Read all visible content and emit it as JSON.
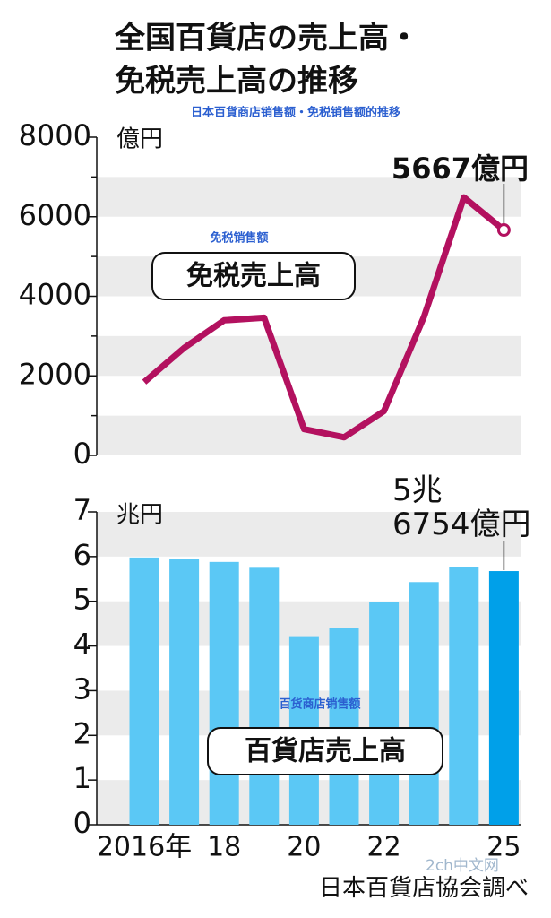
{
  "header": {
    "title": [
      "全国百貨店の売上高・",
      "免税売上高の推移"
    ],
    "subtitle": "日本百貨商店销售额・免税销售额的推移"
  },
  "chart_data": [
    {
      "type": "line",
      "y_unit": "億円",
      "label_cn": "免税销售额",
      "label": "免税売上高",
      "values": [
        1843,
        2704,
        3396,
        3461,
        660,
        456,
        1115,
        3484,
        6487,
        5667
      ],
      "value_labels": [
        null,
        null,
        null,
        null,
        null,
        null,
        null,
        null,
        null,
        "5667億円"
      ],
      "color": "#b3115f",
      "ylim": [
        0,
        8000
      ],
      "yticks": [
        0,
        2000,
        4000,
        6000,
        8000
      ],
      "minor_yticks": [
        1000,
        3000,
        5000,
        7000
      ],
      "grid": "bands"
    },
    {
      "type": "bar",
      "y_unit": "兆円",
      "label_cn": "百货商店销售额",
      "label": "百貨店売上高",
      "categories": [
        "2016年",
        null,
        "18",
        null,
        "20",
        null,
        "22",
        null,
        null,
        "25"
      ],
      "values": [
        5.98,
        5.95,
        5.88,
        5.75,
        4.22,
        4.41,
        4.99,
        5.43,
        5.77,
        5.6754
      ],
      "value_labels": [
        null,
        null,
        null,
        null,
        null,
        null,
        null,
        null,
        null,
        "5兆\n6754億円"
      ],
      "colors": [
        "#5bc8f5",
        "#5bc8f5",
        "#5bc8f5",
        "#5bc8f5",
        "#5bc8f5",
        "#5bc8f5",
        "#5bc8f5",
        "#5bc8f5",
        "#5bc8f5",
        "#00a0e9"
      ],
      "ylim": [
        0,
        7
      ],
      "yticks": [
        0,
        1,
        2,
        3,
        4,
        5,
        6,
        7
      ],
      "grid": "bands"
    }
  ],
  "footer": "日本百貨店協会調べ",
  "watermark": "2ch中文网"
}
